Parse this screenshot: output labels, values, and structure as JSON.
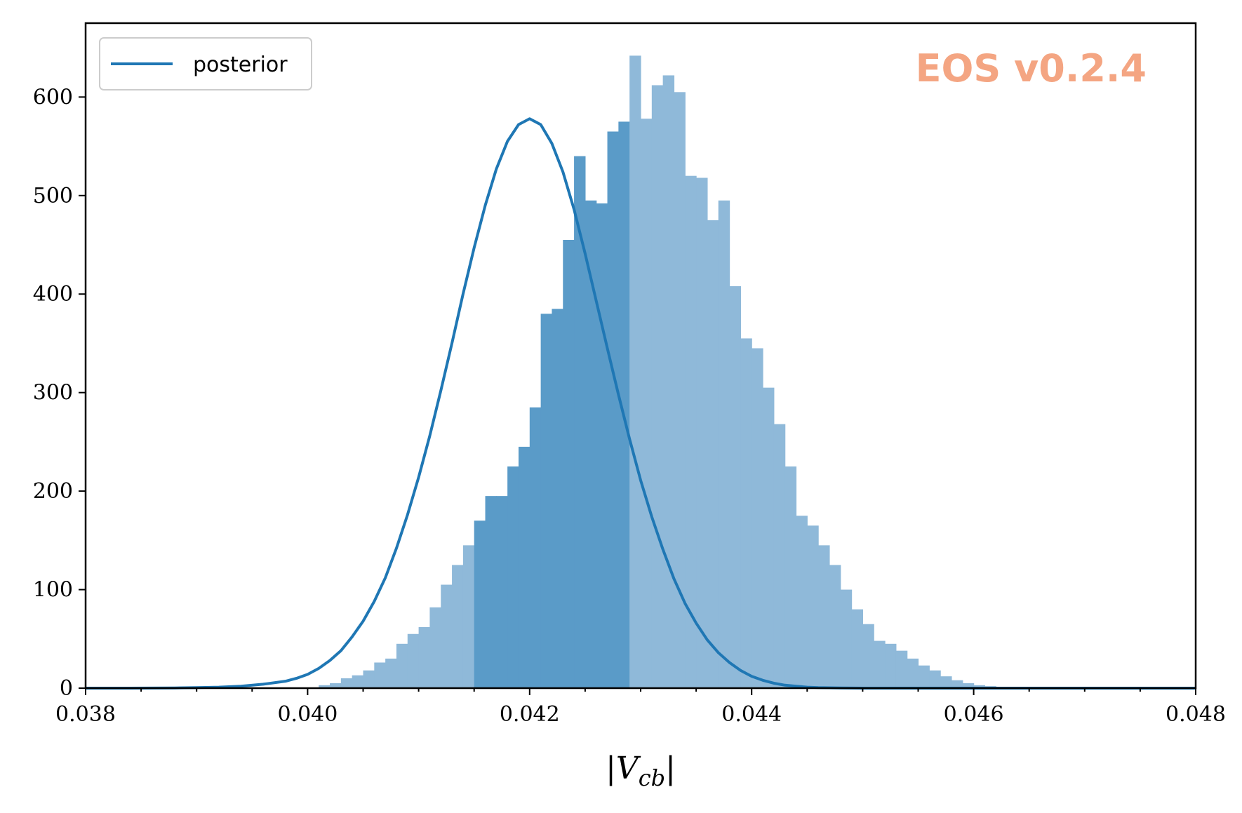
{
  "chart_data": {
    "type": "histogram",
    "title": "",
    "xlabel": "|V_cb|",
    "ylabel": "",
    "xlim": [
      0.038,
      0.048
    ],
    "ylim": [
      0,
      675
    ],
    "x_ticks": [
      "0.038",
      "0.040",
      "0.042",
      "0.044",
      "0.046",
      "0.048"
    ],
    "y_ticks": [
      "0",
      "100",
      "200",
      "300",
      "400",
      "500",
      "600"
    ],
    "x_tick_values": [
      0.038,
      0.04,
      0.042,
      0.044,
      0.046,
      0.048
    ],
    "y_tick_values": [
      0,
      100,
      200,
      300,
      400,
      500,
      600
    ],
    "x_minor_step": 0.0005,
    "grid": false,
    "legend": {
      "placement": "top-left",
      "entries": [
        "posterior"
      ]
    },
    "watermark": "EOS v0.2.4",
    "colors": {
      "line": "#1f77b4",
      "bar_light": "#8fb9d9",
      "bar_dark": "#5a9bc8",
      "watermark": "#f4a582"
    },
    "histogram": {
      "bin_start": 0.0401,
      "bin_width": 0.0001,
      "highlight_range": [
        0.04155,
        0.04285
      ],
      "counts": [
        3,
        5,
        10,
        13,
        18,
        26,
        30,
        45,
        55,
        62,
        82,
        105,
        125,
        145,
        170,
        195,
        195,
        225,
        245,
        285,
        380,
        385,
        455,
        540,
        495,
        492,
        565,
        575,
        642,
        578,
        612,
        622,
        605,
        520,
        518,
        475,
        495,
        408,
        355,
        345,
        305,
        268,
        225,
        175,
        165,
        145,
        125,
        100,
        80,
        65,
        48,
        45,
        38,
        30,
        23,
        18,
        12,
        8,
        5,
        3,
        2
      ]
    },
    "series": [
      {
        "name": "posterior",
        "x": [
          0.038,
          0.0384,
          0.0388,
          0.039,
          0.0392,
          0.0394,
          0.0396,
          0.0398,
          0.0399,
          0.04,
          0.0401,
          0.0402,
          0.0403,
          0.0404,
          0.0405,
          0.0406,
          0.0407,
          0.0408,
          0.0409,
          0.041,
          0.0411,
          0.0412,
          0.0413,
          0.0414,
          0.0415,
          0.0416,
          0.0417,
          0.0418,
          0.0419,
          0.042,
          0.0421,
          0.0422,
          0.0423,
          0.0424,
          0.0425,
          0.0426,
          0.0427,
          0.0428,
          0.0429,
          0.043,
          0.0431,
          0.0432,
          0.0433,
          0.0434,
          0.0435,
          0.0436,
          0.0437,
          0.0438,
          0.0439,
          0.044,
          0.0441,
          0.0442,
          0.0443,
          0.0444,
          0.0445,
          0.0446,
          0.0448,
          0.045,
          0.0454,
          0.046,
          0.047,
          0.048
        ],
        "y": [
          0,
          0,
          0.2,
          0.5,
          1,
          2,
          4,
          7,
          10,
          14,
          20,
          28,
          38,
          52,
          68,
          88,
          112,
          142,
          176,
          214,
          256,
          302,
          350,
          400,
          447,
          490,
          527,
          555,
          572,
          578,
          572,
          553,
          524,
          486,
          441,
          393,
          345,
          298,
          253,
          211,
          174,
          141,
          111,
          86,
          66,
          49,
          36,
          26,
          18,
          12,
          8,
          5,
          3,
          2,
          1,
          0.5,
          0.2,
          0,
          0,
          0,
          0,
          0
        ]
      }
    ]
  }
}
